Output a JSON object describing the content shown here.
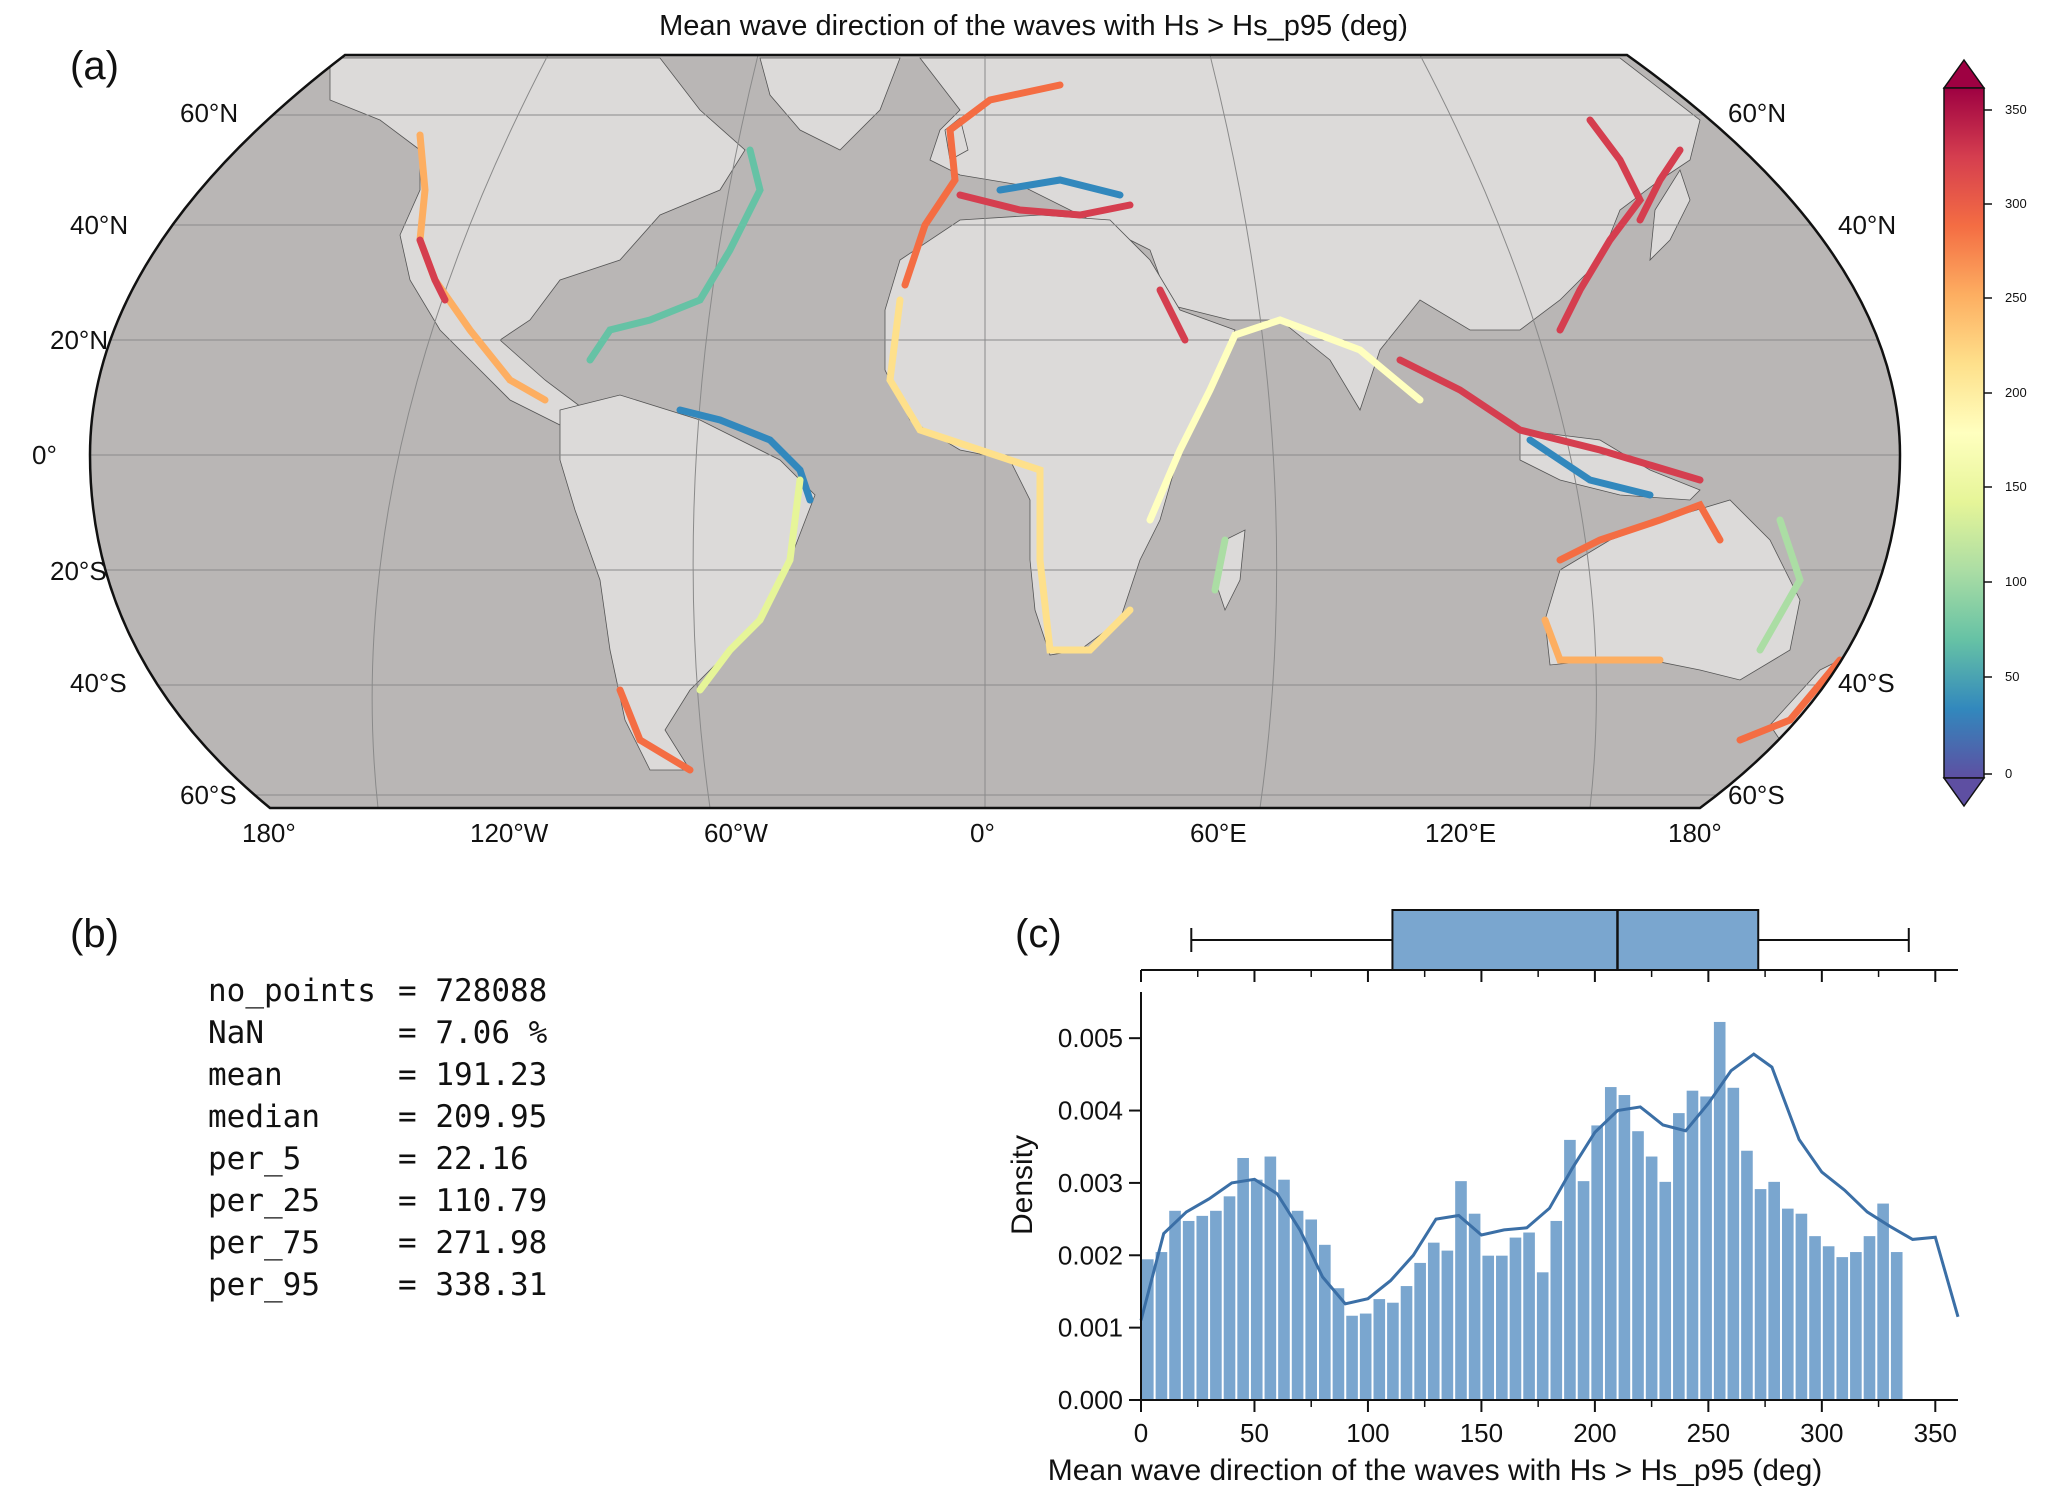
{
  "panel_a": {
    "label": "(a)",
    "title": "Mean wave direction of the waves with Hs > Hs_p95 (deg)",
    "lat_labels_left": [
      "60°N",
      "40°N",
      "20°N",
      "0°",
      "20°S",
      "40°S",
      "60°S"
    ],
    "lat_labels_right": [
      "60°N",
      "40°N",
      "40°S",
      "60°S"
    ],
    "lon_labels": [
      "180°",
      "120°W",
      "60°W",
      "0°",
      "60°E",
      "120°E",
      "180°"
    ],
    "colorbar_ticks": [
      "350",
      "300",
      "250",
      "200",
      "150",
      "100",
      "50",
      "0"
    ],
    "colors": {
      "ocean": "#b9b6b5",
      "land": "#dcdad9",
      "border": "#222222"
    }
  },
  "panel_b": {
    "label": "(b)",
    "stats": [
      {
        "key": "no_points",
        "value": "= 728088"
      },
      {
        "key": "NaN",
        "value": "= 7.06 %"
      },
      {
        "key": "mean",
        "value": "= 191.23"
      },
      {
        "key": "median",
        "value": "= 209.95"
      },
      {
        "key": "per_5",
        "value": "= 22.16"
      },
      {
        "key": "per_25",
        "value": "= 110.79"
      },
      {
        "key": "per_75",
        "value": "= 271.98"
      },
      {
        "key": "per_95",
        "value": "= 338.31"
      }
    ]
  },
  "panel_c": {
    "label": "(c)"
  },
  "chart_data": [
    {
      "type": "box",
      "whisker_low": 22.16,
      "q1": 110.79,
      "median": 209.95,
      "q3": 271.98,
      "whisker_high": 338.31,
      "xlim": [
        0,
        360
      ],
      "color": "#7aa6cf"
    },
    {
      "type": "bar",
      "xlabel": "Mean wave direction of the waves with Hs > Hs_p95 (deg)",
      "ylabel": "Density",
      "xlim": [
        0,
        360
      ],
      "ylim": [
        0,
        0.0055
      ],
      "xticks": [
        "0",
        "50",
        "100",
        "150",
        "200",
        "250",
        "300",
        "350"
      ],
      "yticks": [
        "0.000",
        "0.001",
        "0.002",
        "0.003",
        "0.004",
        "0.005"
      ],
      "bin_width": 6,
      "bin_start": 0,
      "values": [
        0.00195,
        0.00205,
        0.00262,
        0.00248,
        0.00255,
        0.00262,
        0.00282,
        0.00335,
        0.00305,
        0.00337,
        0.00305,
        0.00262,
        0.0025,
        0.00215,
        0.00155,
        0.00117,
        0.0012,
        0.0014,
        0.00135,
        0.00158,
        0.0019,
        0.00218,
        0.00207,
        0.00303,
        0.00258,
        0.002,
        0.002,
        0.00225,
        0.00232,
        0.00177,
        0.00248,
        0.0036,
        0.00303,
        0.0038,
        0.00433,
        0.00422,
        0.00372,
        0.00337,
        0.00302,
        0.00397,
        0.00428,
        0.0042,
        0.00523,
        0.00432,
        0.00345,
        0.00292,
        0.00302,
        0.00265,
        0.00258,
        0.00227,
        0.00213,
        0.00198,
        0.00205,
        0.00227,
        0.00272,
        0.00205
      ],
      "kde": [
        [
          0,
          0.0011
        ],
        [
          10,
          0.0023
        ],
        [
          20,
          0.0026
        ],
        [
          30,
          0.00278
        ],
        [
          40,
          0.003
        ],
        [
          50,
          0.00305
        ],
        [
          60,
          0.00285
        ],
        [
          70,
          0.00235
        ],
        [
          80,
          0.0017
        ],
        [
          90,
          0.00133
        ],
        [
          100,
          0.0014
        ],
        [
          110,
          0.00165
        ],
        [
          120,
          0.002
        ],
        [
          130,
          0.0025
        ],
        [
          140,
          0.00255
        ],
        [
          150,
          0.00228
        ],
        [
          160,
          0.00235
        ],
        [
          170,
          0.00238
        ],
        [
          180,
          0.00265
        ],
        [
          190,
          0.0032
        ],
        [
          200,
          0.0037
        ],
        [
          210,
          0.004
        ],
        [
          220,
          0.00405
        ],
        [
          230,
          0.0038
        ],
        [
          240,
          0.00372
        ],
        [
          250,
          0.0041
        ],
        [
          260,
          0.00455
        ],
        [
          270,
          0.00478
        ],
        [
          278,
          0.0046
        ],
        [
          290,
          0.0036
        ],
        [
          300,
          0.00315
        ],
        [
          310,
          0.0029
        ],
        [
          320,
          0.0026
        ],
        [
          330,
          0.0024
        ],
        [
          340,
          0.00222
        ],
        [
          350,
          0.00225
        ],
        [
          360,
          0.00115
        ]
      ],
      "bar_color": "#7aa6cf",
      "line_color": "#3b6fa6"
    }
  ]
}
